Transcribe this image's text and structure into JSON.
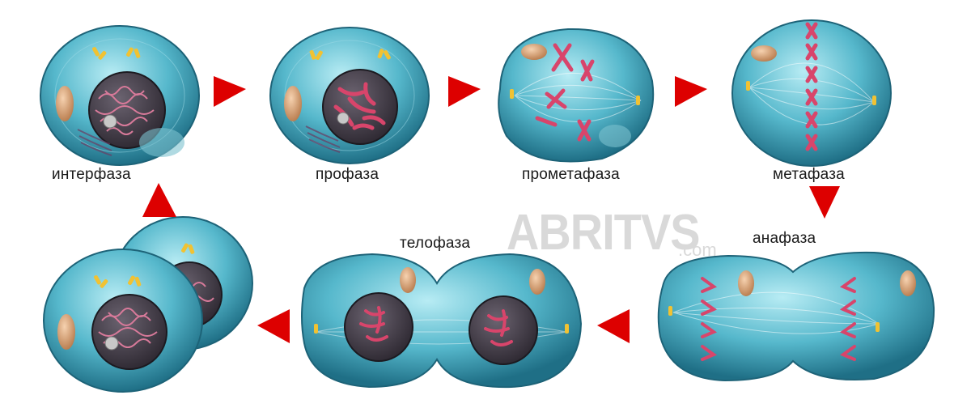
{
  "stages": [
    {
      "id": "interphase",
      "label": "интерфаза"
    },
    {
      "id": "prophase",
      "label": "профаза"
    },
    {
      "id": "prometaphase",
      "label": "прометафаза"
    },
    {
      "id": "metaphase",
      "label": "метафаза"
    },
    {
      "id": "anaphase",
      "label": "анафаза"
    },
    {
      "id": "telophase",
      "label": "телофаза"
    }
  ],
  "watermark": {
    "main": "ABRITVS",
    "suffix": ".com"
  },
  "colors": {
    "cell_fill": "#56b8cc",
    "cell_edge": "#1f6f86",
    "nucleus": "#3a3340",
    "chromosome": "#d8456b",
    "centriole": "#f1c232",
    "mitochondria": "#e0a97a",
    "arrow": "#dd0000"
  }
}
